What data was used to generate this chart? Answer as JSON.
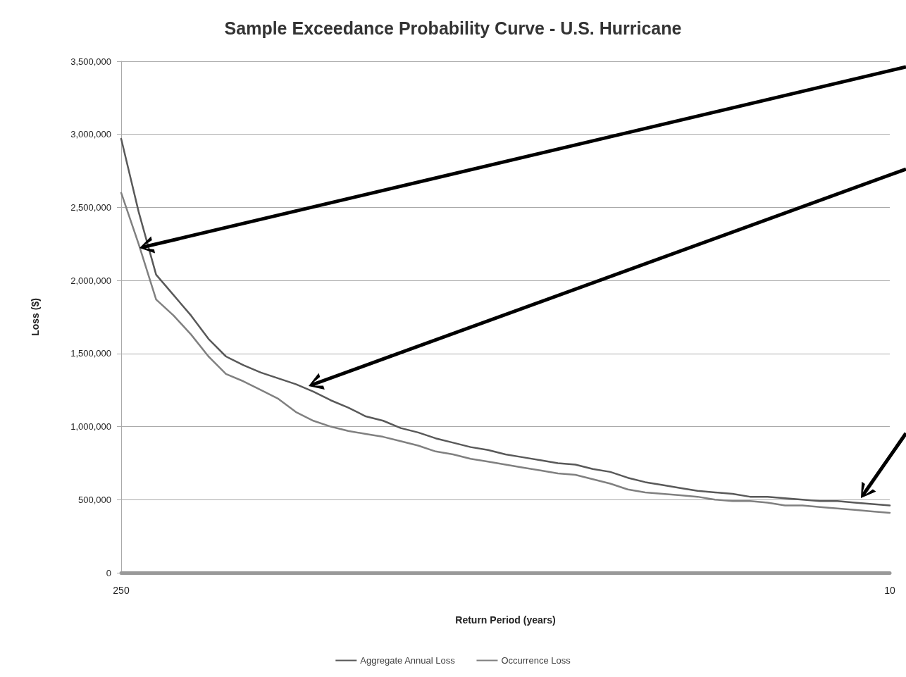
{
  "chart_data": {
    "type": "line",
    "title": "Sample Exceedance Probability Curve - U.S. Hurricane",
    "xlabel": "Return Period (years)",
    "ylabel": "Loss ($)",
    "categories": [
      "250",
      null,
      null,
      null,
      null,
      null,
      null,
      null,
      null,
      null,
      null,
      null,
      null,
      null,
      null,
      null,
      null,
      null,
      null,
      null,
      null,
      null,
      null,
      null,
      null,
      null,
      null,
      null,
      null,
      null,
      null,
      null,
      null,
      null,
      null,
      null,
      null,
      null,
      null,
      null,
      null,
      null,
      null,
      null,
      "10"
    ],
    "series": [
      {
        "name": "Aggregate Annual Loss",
        "color": "#595959",
        "values": [
          2970000,
          2470000,
          2040000,
          1900000,
          1760000,
          1600000,
          1480000,
          1420000,
          1370000,
          1330000,
          1290000,
          1240000,
          1180000,
          1130000,
          1070000,
          1040000,
          990000,
          960000,
          920000,
          890000,
          860000,
          840000,
          810000,
          790000,
          770000,
          750000,
          740000,
          710000,
          690000,
          650000,
          620000,
          600000,
          580000,
          560000,
          550000,
          540000,
          520000,
          520000,
          510000,
          500000,
          490000,
          490000,
          480000,
          470000,
          460000
        ]
      },
      {
        "name": "Occurrence Loss",
        "color": "#808080",
        "values": [
          2600000,
          2250000,
          1870000,
          1760000,
          1630000,
          1480000,
          1360000,
          1310000,
          1250000,
          1190000,
          1100000,
          1040000,
          1000000,
          970000,
          950000,
          930000,
          900000,
          870000,
          830000,
          810000,
          780000,
          760000,
          740000,
          720000,
          700000,
          680000,
          670000,
          640000,
          610000,
          570000,
          550000,
          540000,
          530000,
          520000,
          500000,
          490000,
          490000,
          480000,
          460000,
          460000,
          450000,
          440000,
          430000,
          420000,
          410000
        ]
      }
    ],
    "ylim": [
      0,
      3500000
    ],
    "yticks": [
      0,
      {
        "value": 500000,
        "label": "500,000"
      },
      {
        "value": 1000000,
        "label": "1,000,000"
      },
      {
        "value": 1500000,
        "label": "1,500,000"
      },
      {
        "value": 2000000,
        "label": "2,000,000"
      },
      {
        "value": 2500000,
        "label": "2,500,000"
      },
      {
        "value": 3000000,
        "label": "3,000,000"
      },
      {
        "value": 3500000,
        "label": "3,500,000"
      }
    ],
    "grid": "y",
    "legend": "bottom",
    "marker": "none",
    "line_style": "solid"
  }
}
